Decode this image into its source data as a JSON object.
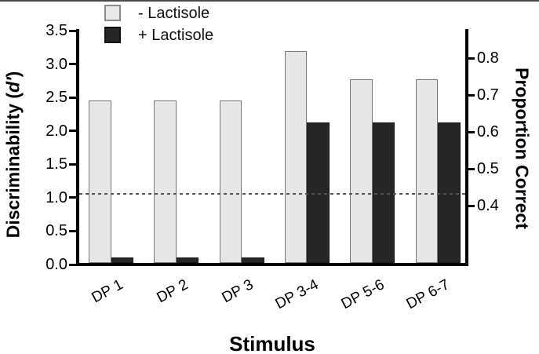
{
  "chart_data": {
    "type": "bar",
    "xlabel": "Stimulus",
    "ylabel_left": {
      "pre": "Discriminability (",
      "italic": "d′",
      "post": ")"
    },
    "ylabel_right": "Proportion Correct",
    "categories": [
      "DP 1",
      "DP 2",
      "DP 3",
      "DP 3-4",
      "DP 5-6",
      "DP 6-7"
    ],
    "series": [
      {
        "name": "- Lactisole",
        "color": "#e6e6e6",
        "border": "#787878",
        "values": [
          2.45,
          2.45,
          2.45,
          3.19,
          2.77,
          2.77
        ]
      },
      {
        "name": "+ Lactisole",
        "color": "#262626",
        "border": "#1a1a1a",
        "values": [
          0.1,
          0.1,
          0.1,
          2.13,
          2.13,
          2.13
        ]
      }
    ],
    "left_axis": {
      "ticks": [
        "0.0",
        "0.5",
        "1.0",
        "1.5",
        "2.0",
        "2.5",
        "3.0",
        "3.5"
      ],
      "min": 0,
      "max": 3.5
    },
    "right_axis": {
      "ticks": [
        "0.4",
        "0.5",
        "0.6",
        "0.7",
        "0.8"
      ],
      "min": 0.4,
      "max": 0.8
    },
    "reference_line": {
      "value_left": 1.06,
      "value_right": 0.43,
      "style": "dashed",
      "color": "#555555"
    },
    "legend_position": "top",
    "grid": false
  }
}
